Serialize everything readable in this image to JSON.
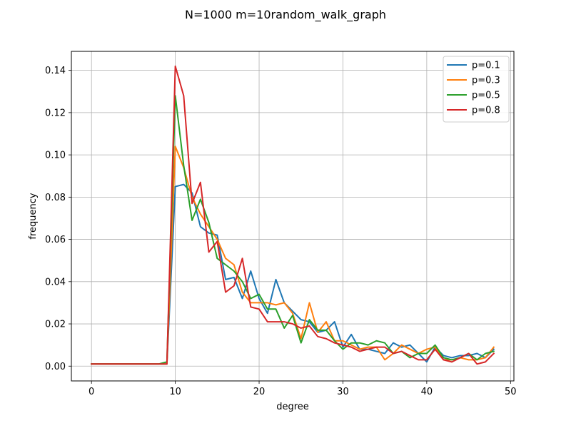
{
  "chart_data": {
    "type": "line",
    "title": "N=1000 m=10random_walk_graph",
    "xlabel": "degree",
    "ylabel": "frequency",
    "xlim": [
      -2.4,
      50.4
    ],
    "ylim": [
      -0.007,
      0.149
    ],
    "xticks": [
      0,
      10,
      20,
      30,
      40,
      50
    ],
    "xtick_labels": [
      "0",
      "10",
      "20",
      "30",
      "40",
      "50"
    ],
    "yticks": [
      0.0,
      0.02,
      0.04,
      0.06,
      0.08,
      0.1,
      0.12,
      0.14
    ],
    "ytick_labels": [
      "0.00",
      "0.02",
      "0.04",
      "0.06",
      "0.08",
      "0.10",
      "0.12",
      "0.14"
    ],
    "grid": true,
    "legend_position": "top-right",
    "x": [
      0,
      1,
      2,
      3,
      4,
      5,
      6,
      7,
      8,
      9,
      10,
      11,
      12,
      13,
      14,
      15,
      16,
      17,
      18,
      19,
      20,
      21,
      22,
      23,
      24,
      25,
      26,
      27,
      28,
      29,
      30,
      31,
      32,
      33,
      34,
      35,
      36,
      37,
      38,
      39,
      40,
      41,
      42,
      43,
      44,
      45,
      46,
      47,
      48
    ],
    "series": [
      {
        "name": "p=0.1",
        "color": "#1f77b4",
        "values": [
          0.001,
          0.001,
          0.001,
          0.001,
          0.001,
          0.001,
          0.001,
          0.001,
          0.001,
          0.001,
          0.085,
          0.086,
          0.082,
          0.066,
          0.063,
          0.062,
          0.041,
          0.042,
          0.032,
          0.045,
          0.032,
          0.025,
          0.041,
          0.03,
          0.026,
          0.022,
          0.021,
          0.016,
          0.017,
          0.021,
          0.009,
          0.015,
          0.008,
          0.008,
          0.007,
          0.006,
          0.011,
          0.009,
          0.01,
          0.006,
          0.002,
          0.009,
          0.005,
          0.004,
          0.005,
          0.005,
          0.006,
          0.004,
          0.008
        ]
      },
      {
        "name": "p=0.3",
        "color": "#ff7f0e",
        "values": [
          0.001,
          0.001,
          0.001,
          0.001,
          0.001,
          0.001,
          0.001,
          0.001,
          0.001,
          0.001,
          0.104,
          0.094,
          0.08,
          0.072,
          0.066,
          0.06,
          0.051,
          0.048,
          0.035,
          0.03,
          0.03,
          0.03,
          0.029,
          0.03,
          0.025,
          0.013,
          0.03,
          0.016,
          0.021,
          0.012,
          0.012,
          0.01,
          0.008,
          0.009,
          0.009,
          0.003,
          0.006,
          0.01,
          0.008,
          0.006,
          0.008,
          0.009,
          0.003,
          0.003,
          0.004,
          0.003,
          0.003,
          0.004,
          0.009
        ]
      },
      {
        "name": "p=0.5",
        "color": "#2ca02c",
        "values": [
          0.001,
          0.001,
          0.001,
          0.001,
          0.001,
          0.001,
          0.001,
          0.001,
          0.001,
          0.002,
          0.128,
          0.095,
          0.069,
          0.079,
          0.068,
          0.051,
          0.048,
          0.045,
          0.04,
          0.032,
          0.034,
          0.027,
          0.027,
          0.018,
          0.024,
          0.011,
          0.022,
          0.017,
          0.017,
          0.012,
          0.008,
          0.011,
          0.011,
          0.01,
          0.012,
          0.011,
          0.006,
          0.007,
          0.004,
          0.006,
          0.006,
          0.01,
          0.004,
          0.003,
          0.004,
          0.006,
          0.003,
          0.006,
          0.007
        ]
      },
      {
        "name": "p=0.8",
        "color": "#d62728",
        "values": [
          0.001,
          0.001,
          0.001,
          0.001,
          0.001,
          0.001,
          0.001,
          0.001,
          0.001,
          0.001,
          0.142,
          0.128,
          0.077,
          0.087,
          0.054,
          0.059,
          0.035,
          0.038,
          0.051,
          0.028,
          0.027,
          0.021,
          0.021,
          0.021,
          0.02,
          0.018,
          0.019,
          0.014,
          0.013,
          0.011,
          0.01,
          0.009,
          0.007,
          0.008,
          0.009,
          0.009,
          0.006,
          0.007,
          0.005,
          0.003,
          0.003,
          0.008,
          0.003,
          0.002,
          0.004,
          0.006,
          0.001,
          0.002,
          0.006
        ]
      }
    ]
  }
}
